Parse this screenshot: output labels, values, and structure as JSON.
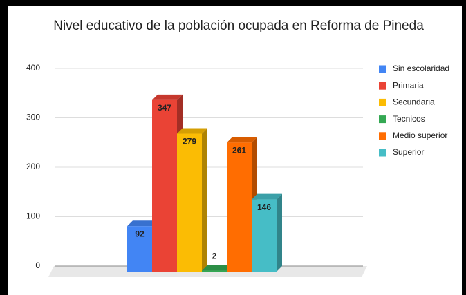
{
  "chart_data": {
    "type": "bar3d",
    "title": "Nivel educativo de la población ocupada en Reforma de Pineda",
    "series": [
      {
        "name": "Sin escolaridad",
        "color": "#4285f4",
        "values": [
          92
        ]
      },
      {
        "name": "Primaria",
        "color": "#ea4335",
        "values": [
          347
        ]
      },
      {
        "name": "Secundaria",
        "color": "#fbbc04",
        "values": [
          279
        ]
      },
      {
        "name": "Tecnicos",
        "color": "#34a853",
        "values": [
          2
        ]
      },
      {
        "name": "Medio superior",
        "color": "#ff6d01",
        "values": [
          261
        ]
      },
      {
        "name": "Superior",
        "color": "#46bdc6",
        "values": [
          146
        ]
      }
    ],
    "ylim": [
      0,
      400
    ],
    "yticks": [
      0,
      100,
      200,
      300,
      400
    ],
    "grid": true,
    "legend": "right"
  }
}
